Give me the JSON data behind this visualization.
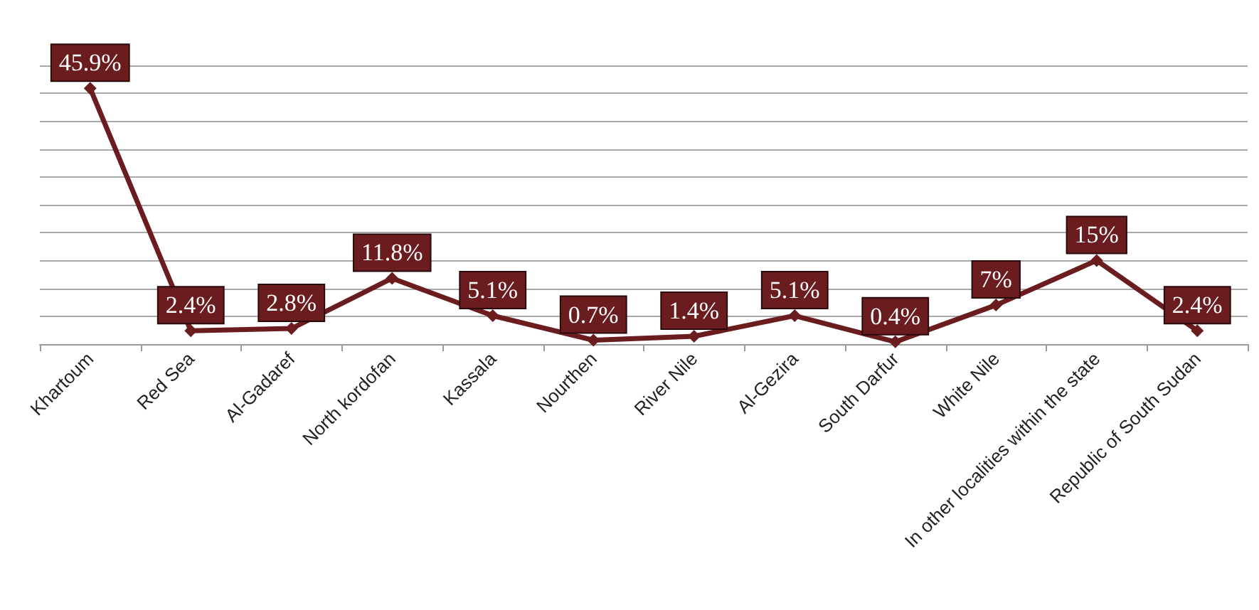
{
  "chart_data": {
    "type": "line",
    "categories": [
      "Khartoum",
      "Red Sea",
      "Al-Gadaref",
      "North kordofan",
      "Kassala",
      "Nourthen",
      "River Nile",
      "Al-Gezira",
      "South Darfur",
      "White Nile",
      "In other localities within the state",
      "Republic of South Sudan"
    ],
    "series": [
      {
        "color": "#6b1c1f",
        "values": [
          45.9,
          2.4,
          2.8,
          11.8,
          5.1,
          0.7,
          1.4,
          5.1,
          0.4,
          7,
          15,
          2.4
        ],
        "value_labels": [
          "45.9%",
          "2.4%",
          "2.8%",
          "11.8%",
          "5.1%",
          "0.7%",
          "1.4%",
          "5.1%",
          "0.4%",
          "7%",
          "15%",
          "2.4%"
        ]
      }
    ],
    "tick_labels": "x",
    "grid": "y",
    "marker": "diamond",
    "line_style": "solid"
  }
}
